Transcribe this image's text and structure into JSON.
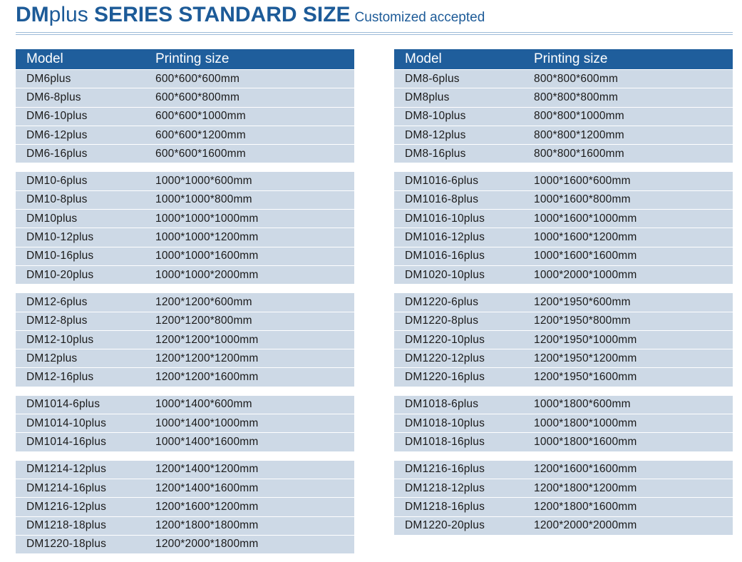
{
  "header": {
    "title_bold": "DM",
    "title_light": "plus",
    "title_rest": "SERIES STANDARD SIZE",
    "subtitle": "Customized accepted"
  },
  "tables": [
    {
      "columns": [
        "Model",
        "Printing size"
      ],
      "groups": [
        [
          [
            "DM6plus",
            "600*600*600mm"
          ],
          [
            "DM6-8plus",
            "600*600*800mm"
          ],
          [
            "DM6-10plus",
            "600*600*1000mm"
          ],
          [
            "DM6-12plus",
            "600*600*1200mm"
          ],
          [
            "DM6-16plus",
            "600*600*1600mm"
          ]
        ],
        [
          [
            "DM10-6plus",
            "1000*1000*600mm"
          ],
          [
            "DM10-8plus",
            "1000*1000*800mm"
          ],
          [
            "DM10plus",
            "1000*1000*1000mm"
          ],
          [
            "DM10-12plus",
            "1000*1000*1200mm"
          ],
          [
            "DM10-16plus",
            "1000*1000*1600mm"
          ],
          [
            "DM10-20plus",
            "1000*1000*2000mm"
          ]
        ],
        [
          [
            "DM12-6plus",
            "1200*1200*600mm"
          ],
          [
            "DM12-8plus",
            "1200*1200*800mm"
          ],
          [
            "DM12-10plus",
            "1200*1200*1000mm"
          ],
          [
            "DM12plus",
            "1200*1200*1200mm"
          ],
          [
            "DM12-16plus",
            "1200*1200*1600mm"
          ]
        ],
        [
          [
            "DM1014-6plus",
            "1000*1400*600mm"
          ],
          [
            "DM1014-10plus",
            "1000*1400*1000mm"
          ],
          [
            "DM1014-16plus",
            "1000*1400*1600mm"
          ]
        ],
        [
          [
            "DM1214-12plus",
            "1200*1400*1200mm"
          ],
          [
            "DM1214-16plus",
            "1200*1400*1600mm"
          ],
          [
            "DM1216-12plus",
            "1200*1600*1200mm"
          ],
          [
            "DM1218-18plus",
            "1200*1800*1800mm"
          ],
          [
            "DM1220-18plus",
            "1200*2000*1800mm"
          ]
        ]
      ]
    },
    {
      "columns": [
        "Model",
        "Printing size"
      ],
      "groups": [
        [
          [
            "DM8-6plus",
            "800*800*600mm"
          ],
          [
            "DM8plus",
            "800*800*800mm"
          ],
          [
            "DM8-10plus",
            "800*800*1000mm"
          ],
          [
            "DM8-12plus",
            "800*800*1200mm"
          ],
          [
            "DM8-16plus",
            "800*800*1600mm"
          ]
        ],
        [
          [
            "DM1016-6plus",
            "1000*1600*600mm"
          ],
          [
            "DM1016-8plus",
            "1000*1600*800mm"
          ],
          [
            "DM1016-10plus",
            "1000*1600*1000mm"
          ],
          [
            "DM1016-12plus",
            "1000*1600*1200mm"
          ],
          [
            "DM1016-16plus",
            "1000*1600*1600mm"
          ],
          [
            "DM1020-10plus",
            "1000*2000*1000mm"
          ]
        ],
        [
          [
            "DM1220-6plus",
            "1200*1950*600mm"
          ],
          [
            "DM1220-8plus",
            "1200*1950*800mm"
          ],
          [
            "DM1220-10plus",
            "1200*1950*1000mm"
          ],
          [
            "DM1220-12plus",
            "1200*1950*1200mm"
          ],
          [
            "DM1220-16plus",
            "1200*1950*1600mm"
          ]
        ],
        [
          [
            "DM1018-6plus",
            "1000*1800*600mm"
          ],
          [
            "DM1018-10plus",
            "1000*1800*1000mm"
          ],
          [
            "DM1018-16plus",
            "1000*1800*1600mm"
          ]
        ],
        [
          [
            "DM1216-16plus",
            "1200*1600*1600mm"
          ],
          [
            "DM1218-12plus",
            "1200*1800*1200mm"
          ],
          [
            "DM1218-16plus",
            "1200*1800*1600mm"
          ],
          [
            "DM1220-20plus",
            "1200*2000*2000mm"
          ]
        ]
      ]
    }
  ]
}
